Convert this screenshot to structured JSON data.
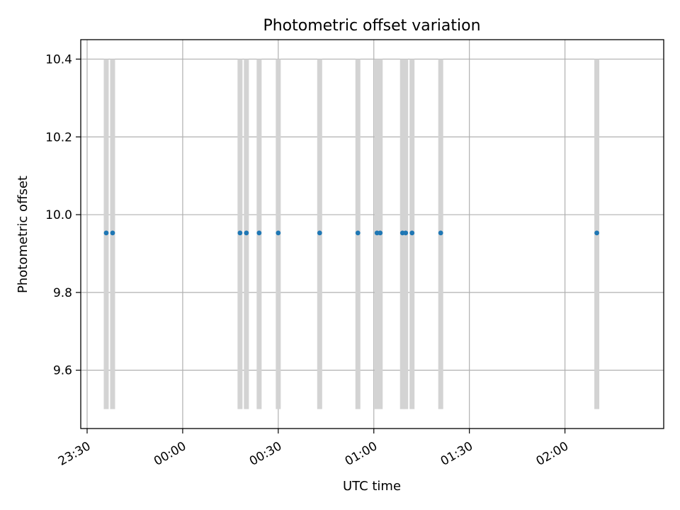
{
  "chart_data": {
    "type": "scatter",
    "title": "Photometric offset variation",
    "xlabel": "UTC time",
    "ylabel": "Photometric offset",
    "ylim": [
      9.45,
      10.45
    ],
    "xlim": [
      "23:28",
      "02:31"
    ],
    "grid": true,
    "x_ticks": [
      "23:30",
      "00:00",
      "00:30",
      "01:00",
      "01:30",
      "02:00"
    ],
    "y_ticks": [
      "9.6",
      "9.8",
      "10.0",
      "10.2",
      "10.4"
    ],
    "series": [
      {
        "values": [
          {
            "x": "23:36",
            "y": 9.953
          },
          {
            "x": "23:38",
            "y": 9.953
          },
          {
            "x": "00:18",
            "y": 9.953
          },
          {
            "x": "00:20",
            "y": 9.953
          },
          {
            "x": "00:24",
            "y": 9.953
          },
          {
            "x": "00:30",
            "y": 9.953
          },
          {
            "x": "00:43",
            "y": 9.953
          },
          {
            "x": "00:55",
            "y": 9.953
          },
          {
            "x": "01:01",
            "y": 9.953
          },
          {
            "x": "01:02",
            "y": 9.953
          },
          {
            "x": "01:09",
            "y": 9.953
          },
          {
            "x": "01:10",
            "y": 9.953
          },
          {
            "x": "01:12",
            "y": 9.953
          },
          {
            "x": "01:21",
            "y": 9.953
          },
          {
            "x": "02:10",
            "y": 9.953
          }
        ],
        "color": "#1f77b4"
      }
    ],
    "bands": {
      "x": [
        "23:36",
        "23:38",
        "00:18",
        "00:20",
        "00:24",
        "00:30",
        "00:43",
        "00:55",
        "01:01",
        "01:02",
        "01:09",
        "01:10",
        "01:12",
        "01:21",
        "02:10"
      ],
      "y_range": [
        9.5,
        10.4
      ],
      "color": "#d3d3d3"
    }
  }
}
